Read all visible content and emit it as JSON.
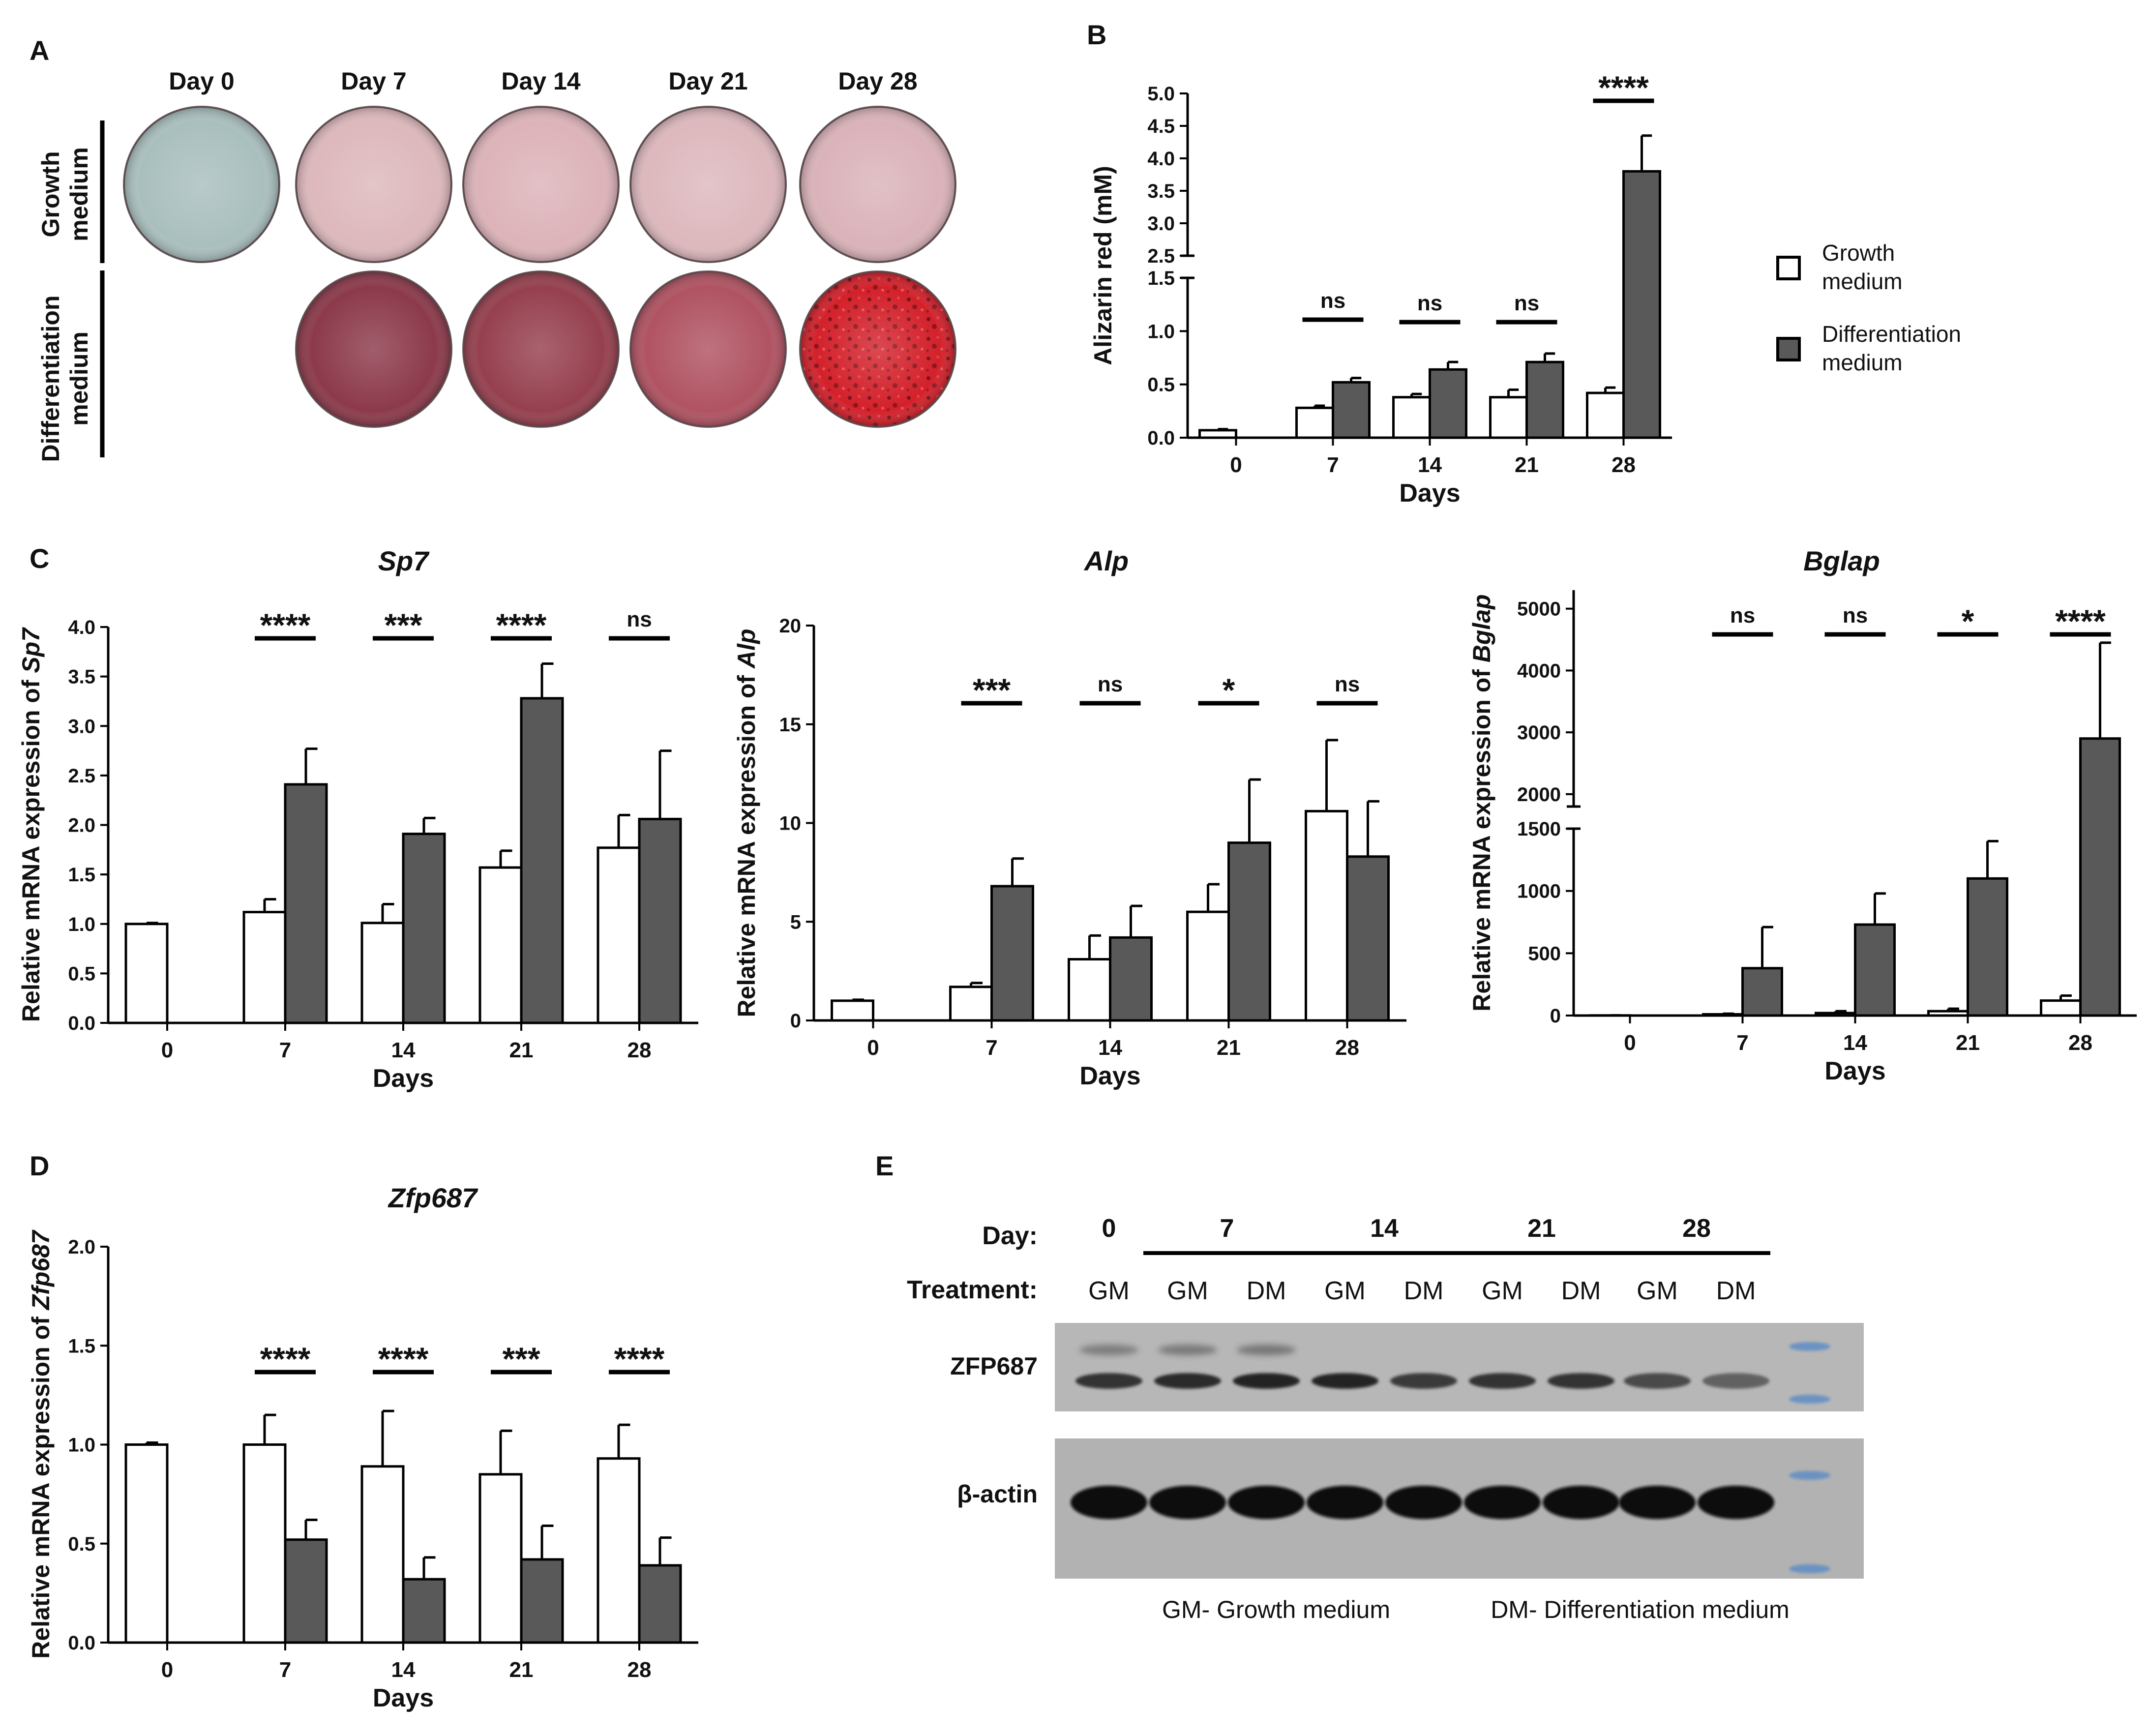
{
  "panel_letters": [
    "A",
    "B",
    "C",
    "D",
    "E"
  ],
  "panel_a": {
    "days": [
      "Day 0",
      "Day 7",
      "Day 14",
      "Day 21",
      "Day 28"
    ],
    "rows": [
      {
        "label_lines": [
          "Growth",
          "medium"
        ],
        "well_colors": [
          "#a9bfbe",
          "#ddb8bc",
          "#dcb3b9",
          "#ddb8bd",
          "#dab3b9"
        ]
      },
      {
        "label_lines": [
          "Differentiation",
          "medium"
        ],
        "well_colors": [
          "",
          "#8c3a4b",
          "#96404f",
          "#b05362",
          "#d0202a"
        ]
      }
    ]
  },
  "legend": {
    "entries": [
      {
        "lines": [
          "Growth",
          "medium"
        ],
        "color": "#ffffff"
      },
      {
        "lines": [
          "Differentiation",
          "medium"
        ],
        "color": "#595959"
      }
    ]
  },
  "colors": {
    "growth": "#ffffff",
    "differentiation": "#595959",
    "stroke": "#000000"
  },
  "chart_data": [
    {
      "panel": "B",
      "type": "bar",
      "title": "",
      "xlabel": "Days",
      "ylabel": "Alizarin red (mM)",
      "categories": [
        "0",
        "7",
        "14",
        "21",
        "28"
      ],
      "series": [
        {
          "name": "Growth medium",
          "values": [
            0.07,
            0.28,
            0.38,
            0.38,
            0.42
          ],
          "errors": [
            0.01,
            0.02,
            0.03,
            0.07,
            0.05
          ]
        },
        {
          "name": "Differentiation medium",
          "values": [
            null,
            0.52,
            0.64,
            0.71,
            3.8
          ],
          "errors": [
            null,
            0.04,
            0.07,
            0.08,
            0.55
          ]
        }
      ],
      "y_axis_break": {
        "lower": [
          0,
          1.5
        ],
        "upper": [
          2.5,
          5.0
        ]
      },
      "yticks_lower": [
        "0.0",
        "0.5",
        "1.0",
        "1.5"
      ],
      "yticks_upper": [
        "2.5",
        "3.0",
        "3.5",
        "4.0",
        "4.5",
        "5.0"
      ],
      "significance": [
        "",
        "ns",
        "ns",
        "ns",
        "****"
      ]
    },
    {
      "panel": "C",
      "type": "bar",
      "title": "Sp7",
      "xlabel": "Days",
      "ylabel": "Relative mRNA expression of Sp7",
      "ylabel_prefix": "Relative mRNA expression of",
      "ylabel_italic": "Sp7",
      "categories": [
        "0",
        "7",
        "14",
        "21",
        "28"
      ],
      "ylim": [
        0,
        4.0
      ],
      "yticks": [
        "0.0",
        "0.5",
        "1.0",
        "1.5",
        "2.0",
        "2.5",
        "3.0",
        "3.5",
        "4.0"
      ],
      "series": [
        {
          "name": "Growth medium",
          "values": [
            1.0,
            1.12,
            1.01,
            1.57,
            1.77
          ],
          "errors": [
            0.01,
            0.13,
            0.19,
            0.17,
            0.33
          ]
        },
        {
          "name": "Differentiation medium",
          "values": [
            null,
            2.41,
            1.91,
            3.28,
            2.06
          ],
          "errors": [
            null,
            0.36,
            0.16,
            0.35,
            0.69
          ]
        }
      ],
      "significance": [
        "",
        "****",
        "***",
        "****",
        "ns"
      ]
    },
    {
      "panel": "C",
      "type": "bar",
      "title": "Alp",
      "xlabel": "Days",
      "ylabel": "Relative mRNA expression of Alp",
      "ylabel_prefix": "Relative mRNA expression of",
      "ylabel_italic": "Alp",
      "categories": [
        "0",
        "7",
        "14",
        "21",
        "28"
      ],
      "ylim": [
        0,
        20
      ],
      "yticks": [
        "0",
        "5",
        "10",
        "15",
        "20"
      ],
      "series": [
        {
          "name": "Growth medium",
          "values": [
            1.0,
            1.7,
            3.1,
            5.5,
            10.6
          ],
          "errors": [
            0.05,
            0.2,
            1.2,
            1.4,
            3.6
          ]
        },
        {
          "name": "Differentiation medium",
          "values": [
            null,
            6.8,
            4.2,
            9.0,
            8.3
          ],
          "errors": [
            null,
            1.4,
            1.6,
            3.2,
            2.8
          ]
        }
      ],
      "significance": [
        "",
        "***",
        "ns",
        "*",
        "ns"
      ]
    },
    {
      "panel": "C",
      "type": "bar",
      "title": "Bglap",
      "xlabel": "Days",
      "ylabel": "Relative mRNA expression of Bglap",
      "ylabel_prefix": "Relative mRNA expression of",
      "ylabel_italic": "Bglap",
      "categories": [
        "0",
        "7",
        "14",
        "21",
        "28"
      ],
      "series": [
        {
          "name": "Growth medium",
          "values": [
            1,
            10,
            20,
            35,
            120
          ],
          "errors": [
            0.5,
            5,
            15,
            20,
            40
          ]
        },
        {
          "name": "Differentiation medium",
          "values": [
            null,
            380,
            730,
            1100,
            2900
          ],
          "errors": [
            null,
            330,
            250,
            300,
            1550
          ]
        }
      ],
      "y_axis_break": {
        "lower": [
          0,
          1500
        ],
        "upper": [
          1800,
          5300
        ]
      },
      "yticks_lower": [
        "0",
        "500",
        "1000",
        "1500"
      ],
      "yticks_upper": [
        "2000",
        "3000",
        "4000",
        "5000"
      ],
      "significance": [
        "",
        "ns",
        "ns",
        "*",
        "****"
      ]
    },
    {
      "panel": "D",
      "type": "bar",
      "title": "Zfp687",
      "xlabel": "Days",
      "ylabel": "Relative mRNA expression of Zfp687",
      "ylabel_prefix": "Relative mRNA expression of",
      "ylabel_italic": "Zfp687",
      "categories": [
        "0",
        "7",
        "14",
        "21",
        "28"
      ],
      "ylim": [
        0,
        2.0
      ],
      "yticks": [
        "0.0",
        "0.5",
        "1.0",
        "1.5",
        "2.0"
      ],
      "series": [
        {
          "name": "Growth medium",
          "values": [
            1.0,
            1.0,
            0.89,
            0.85,
            0.93
          ],
          "errors": [
            0.01,
            0.15,
            0.28,
            0.22,
            0.17
          ]
        },
        {
          "name": "Differentiation medium",
          "values": [
            null,
            0.52,
            0.32,
            0.42,
            0.39
          ],
          "errors": [
            null,
            0.1,
            0.11,
            0.17,
            0.14
          ]
        }
      ],
      "significance": [
        "",
        "****",
        "****",
        "***",
        "****"
      ]
    }
  ],
  "panel_e": {
    "day_label": "Day:",
    "treatment_label": "Treatment:",
    "days": [
      "0",
      "7",
      "14",
      "21",
      "28"
    ],
    "treatments": [
      "GM",
      "GM",
      "DM",
      "GM",
      "DM",
      "GM",
      "DM",
      "GM",
      "DM"
    ],
    "bands": [
      "ZFP687",
      "β-actin"
    ],
    "zfp_intensity": [
      0.85,
      0.9,
      0.95,
      0.95,
      0.8,
      0.85,
      0.85,
      0.7,
      0.55
    ],
    "footnote_gm": "GM- Growth medium",
    "footnote_dm": "DM- Differentiation medium"
  }
}
